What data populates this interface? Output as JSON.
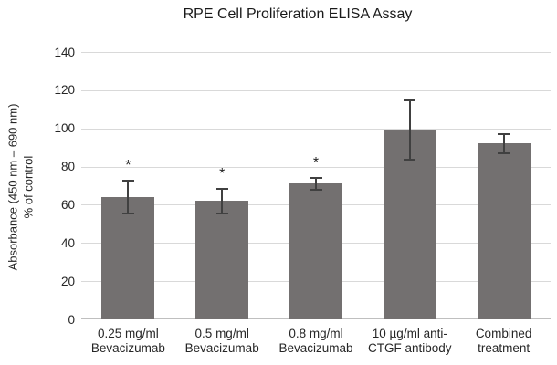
{
  "chart_data": {
    "type": "bar",
    "title": "RPE Cell Proliferation ELISA Assay",
    "ylabel_line1": "Absorbance (450 nm – 690 nm)",
    "ylabel_line2": "% of control",
    "categories": [
      [
        "0.25 mg/ml",
        "Bevacizumab"
      ],
      [
        "0.5 mg/ml",
        "Bevacizumab"
      ],
      [
        "0.8 mg/ml",
        "Bevacizumab"
      ],
      [
        "10 µg/ml anti-",
        "CTGF antibody"
      ],
      [
        "Combined",
        "treatment"
      ]
    ],
    "values": [
      64,
      62,
      71,
      99,
      92
    ],
    "error_plus": [
      9,
      7,
      3.5,
      16,
      5.5
    ],
    "error_minus": [
      9,
      7,
      3.5,
      16,
      5.5
    ],
    "significance": [
      "*",
      "*",
      "*",
      "",
      ""
    ],
    "ylim": [
      0,
      140
    ],
    "ytick_step": 20,
    "grid": true,
    "legend": "none",
    "colors": {
      "bar": "#737070",
      "error_bar": "#404040",
      "gridline": "#d9d9d9",
      "axis_line": "#bfbfbf",
      "text": "#262626"
    }
  }
}
